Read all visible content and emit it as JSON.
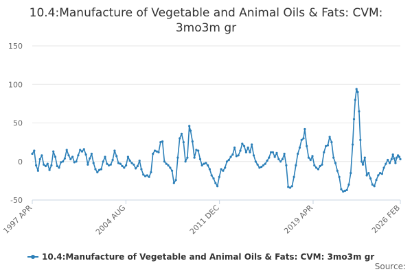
{
  "colors": {
    "series": "#2b7fb8",
    "grid": "#e6e6e6",
    "axis": "#c8d4e0",
    "text": "#333333",
    "tick_text": "#666666"
  },
  "chart_data": {
    "type": "line",
    "title_lines": [
      "10.4:Manufacture of Vegetable and Animal Oils & Fats: CVM:",
      "3mo3m gr"
    ],
    "xlabel": "",
    "ylabel": "",
    "ylim": [
      -50,
      150
    ],
    "y_ticks": [
      -50,
      0,
      50,
      100,
      150
    ],
    "x_range": [
      1997.25,
      2026.083
    ],
    "x_ticks": [
      {
        "label": "1997 APR",
        "x": 1997.25
      },
      {
        "label": "2004 AUG",
        "x": 2004.583
      },
      {
        "label": "2011 DEC",
        "x": 2011.917
      },
      {
        "label": "2019 APR",
        "x": 2019.25
      },
      {
        "label": "2026 FEB",
        "x": 2026.083
      }
    ],
    "grid": true,
    "legend": {
      "position": "bottom"
    },
    "credit": "Source:",
    "series": [
      {
        "name": "10.4:Manufacture of Vegetable and Animal Oils & Fats: CVM: 3mo3m gr",
        "points": [
          [
            1997.25,
            10
          ],
          [
            1997.4,
            14
          ],
          [
            1997.55,
            -5
          ],
          [
            1997.7,
            -12
          ],
          [
            1997.85,
            3
          ],
          [
            1998.0,
            8
          ],
          [
            1998.15,
            -4
          ],
          [
            1998.3,
            -6
          ],
          [
            1998.45,
            -3
          ],
          [
            1998.6,
            -11
          ],
          [
            1998.75,
            -5
          ],
          [
            1998.9,
            13
          ],
          [
            1999.05,
            6
          ],
          [
            1999.2,
            -6
          ],
          [
            1999.35,
            -8
          ],
          [
            1999.5,
            -1
          ],
          [
            1999.65,
            0
          ],
          [
            1999.8,
            4
          ],
          [
            1999.95,
            15
          ],
          [
            2000.1,
            8
          ],
          [
            2000.25,
            3
          ],
          [
            2000.4,
            6
          ],
          [
            2000.55,
            -1
          ],
          [
            2000.7,
            0
          ],
          [
            2000.85,
            8
          ],
          [
            2001.0,
            15
          ],
          [
            2001.15,
            13
          ],
          [
            2001.3,
            16
          ],
          [
            2001.45,
            9
          ],
          [
            2001.6,
            -4
          ],
          [
            2001.75,
            4
          ],
          [
            2001.9,
            10
          ],
          [
            2002.05,
            -2
          ],
          [
            2002.2,
            -10
          ],
          [
            2002.35,
            -14
          ],
          [
            2002.5,
            -11
          ],
          [
            2002.65,
            -10
          ],
          [
            2002.8,
            0
          ],
          [
            2002.95,
            6
          ],
          [
            2003.1,
            -3
          ],
          [
            2003.25,
            -5
          ],
          [
            2003.4,
            -4
          ],
          [
            2003.55,
            2
          ],
          [
            2003.7,
            14
          ],
          [
            2003.85,
            7
          ],
          [
            2004.0,
            -2
          ],
          [
            2004.15,
            -3
          ],
          [
            2004.3,
            -6
          ],
          [
            2004.45,
            -8
          ],
          [
            2004.6,
            -5
          ],
          [
            2004.75,
            6
          ],
          [
            2004.9,
            1
          ],
          [
            2005.05,
            -2
          ],
          [
            2005.2,
            -4
          ],
          [
            2005.35,
            -9
          ],
          [
            2005.5,
            -6
          ],
          [
            2005.65,
            1
          ],
          [
            2005.8,
            -10
          ],
          [
            2005.95,
            -17
          ],
          [
            2006.1,
            -19
          ],
          [
            2006.25,
            -18
          ],
          [
            2006.4,
            -20
          ],
          [
            2006.55,
            -14
          ],
          [
            2006.7,
            10
          ],
          [
            2006.85,
            14
          ],
          [
            2007.0,
            13
          ],
          [
            2007.15,
            12
          ],
          [
            2007.3,
            25
          ],
          [
            2007.45,
            26
          ],
          [
            2007.6,
            0
          ],
          [
            2007.75,
            -3
          ],
          [
            2007.9,
            -5
          ],
          [
            2008.05,
            -8
          ],
          [
            2008.2,
            -12
          ],
          [
            2008.35,
            -28
          ],
          [
            2008.5,
            -24
          ],
          [
            2008.65,
            5
          ],
          [
            2008.8,
            30
          ],
          [
            2008.95,
            36
          ],
          [
            2009.1,
            25
          ],
          [
            2009.25,
            0
          ],
          [
            2009.4,
            5
          ],
          [
            2009.55,
            46
          ],
          [
            2009.65,
            40
          ],
          [
            2009.8,
            26
          ],
          [
            2009.95,
            5
          ],
          [
            2010.1,
            15
          ],
          [
            2010.25,
            14
          ],
          [
            2010.4,
            3
          ],
          [
            2010.55,
            -5
          ],
          [
            2010.7,
            -3
          ],
          [
            2010.85,
            -2
          ],
          [
            2011.0,
            -5
          ],
          [
            2011.15,
            -10
          ],
          [
            2011.3,
            -18
          ],
          [
            2011.45,
            -22
          ],
          [
            2011.6,
            -28
          ],
          [
            2011.75,
            -32
          ],
          [
            2011.9,
            -20
          ],
          [
            2012.05,
            -10
          ],
          [
            2012.2,
            -12
          ],
          [
            2012.35,
            -8
          ],
          [
            2012.5,
            0
          ],
          [
            2012.65,
            2
          ],
          [
            2012.8,
            6
          ],
          [
            2012.95,
            9
          ],
          [
            2013.1,
            18
          ],
          [
            2013.25,
            7
          ],
          [
            2013.4,
            8
          ],
          [
            2013.55,
            14
          ],
          [
            2013.7,
            23
          ],
          [
            2013.85,
            20
          ],
          [
            2014.0,
            12
          ],
          [
            2014.15,
            18
          ],
          [
            2014.3,
            12
          ],
          [
            2014.45,
            22
          ],
          [
            2014.6,
            8
          ],
          [
            2014.75,
            0
          ],
          [
            2014.9,
            -4
          ],
          [
            2015.05,
            -8
          ],
          [
            2015.2,
            -7
          ],
          [
            2015.35,
            -5
          ],
          [
            2015.5,
            -3
          ],
          [
            2015.65,
            1
          ],
          [
            2015.8,
            5
          ],
          [
            2015.95,
            12
          ],
          [
            2016.1,
            12
          ],
          [
            2016.25,
            6
          ],
          [
            2016.4,
            11
          ],
          [
            2016.55,
            3
          ],
          [
            2016.7,
            0
          ],
          [
            2016.85,
            3
          ],
          [
            2017.0,
            10
          ],
          [
            2017.15,
            -5
          ],
          [
            2017.3,
            -33
          ],
          [
            2017.45,
            -34
          ],
          [
            2017.6,
            -32
          ],
          [
            2017.75,
            -20
          ],
          [
            2017.9,
            -5
          ],
          [
            2018.05,
            10
          ],
          [
            2018.2,
            18
          ],
          [
            2018.35,
            28
          ],
          [
            2018.5,
            30
          ],
          [
            2018.6,
            42
          ],
          [
            2018.75,
            20
          ],
          [
            2018.9,
            5
          ],
          [
            2019.05,
            2
          ],
          [
            2019.2,
            7
          ],
          [
            2019.35,
            -5
          ],
          [
            2019.5,
            -8
          ],
          [
            2019.65,
            -10
          ],
          [
            2019.8,
            -6
          ],
          [
            2019.95,
            -4
          ],
          [
            2020.1,
            12
          ],
          [
            2020.25,
            20
          ],
          [
            2020.4,
            21
          ],
          [
            2020.55,
            32
          ],
          [
            2020.7,
            25
          ],
          [
            2020.85,
            5
          ],
          [
            2021.0,
            -2
          ],
          [
            2021.15,
            -12
          ],
          [
            2021.3,
            -20
          ],
          [
            2021.45,
            -36
          ],
          [
            2021.6,
            -39
          ],
          [
            2021.75,
            -38
          ],
          [
            2021.9,
            -37
          ],
          [
            2022.05,
            -30
          ],
          [
            2022.2,
            -15
          ],
          [
            2022.35,
            22
          ],
          [
            2022.45,
            55
          ],
          [
            2022.55,
            80
          ],
          [
            2022.65,
            94
          ],
          [
            2022.75,
            90
          ],
          [
            2022.85,
            65
          ],
          [
            2022.95,
            28
          ],
          [
            2023.05,
            0
          ],
          [
            2023.15,
            -4
          ],
          [
            2023.3,
            5
          ],
          [
            2023.45,
            -18
          ],
          [
            2023.6,
            -15
          ],
          [
            2023.75,
            -22
          ],
          [
            2023.9,
            -30
          ],
          [
            2024.05,
            -32
          ],
          [
            2024.2,
            -24
          ],
          [
            2024.35,
            -18
          ],
          [
            2024.5,
            -15
          ],
          [
            2024.65,
            -16
          ],
          [
            2024.8,
            -8
          ],
          [
            2024.95,
            -3
          ],
          [
            2025.1,
            2
          ],
          [
            2025.25,
            -2
          ],
          [
            2025.4,
            3
          ],
          [
            2025.5,
            9
          ],
          [
            2025.6,
            4
          ],
          [
            2025.7,
            -2
          ],
          [
            2025.8,
            5
          ],
          [
            2025.9,
            8
          ],
          [
            2026.0,
            6
          ],
          [
            2026.083,
            3
          ]
        ]
      }
    ]
  }
}
